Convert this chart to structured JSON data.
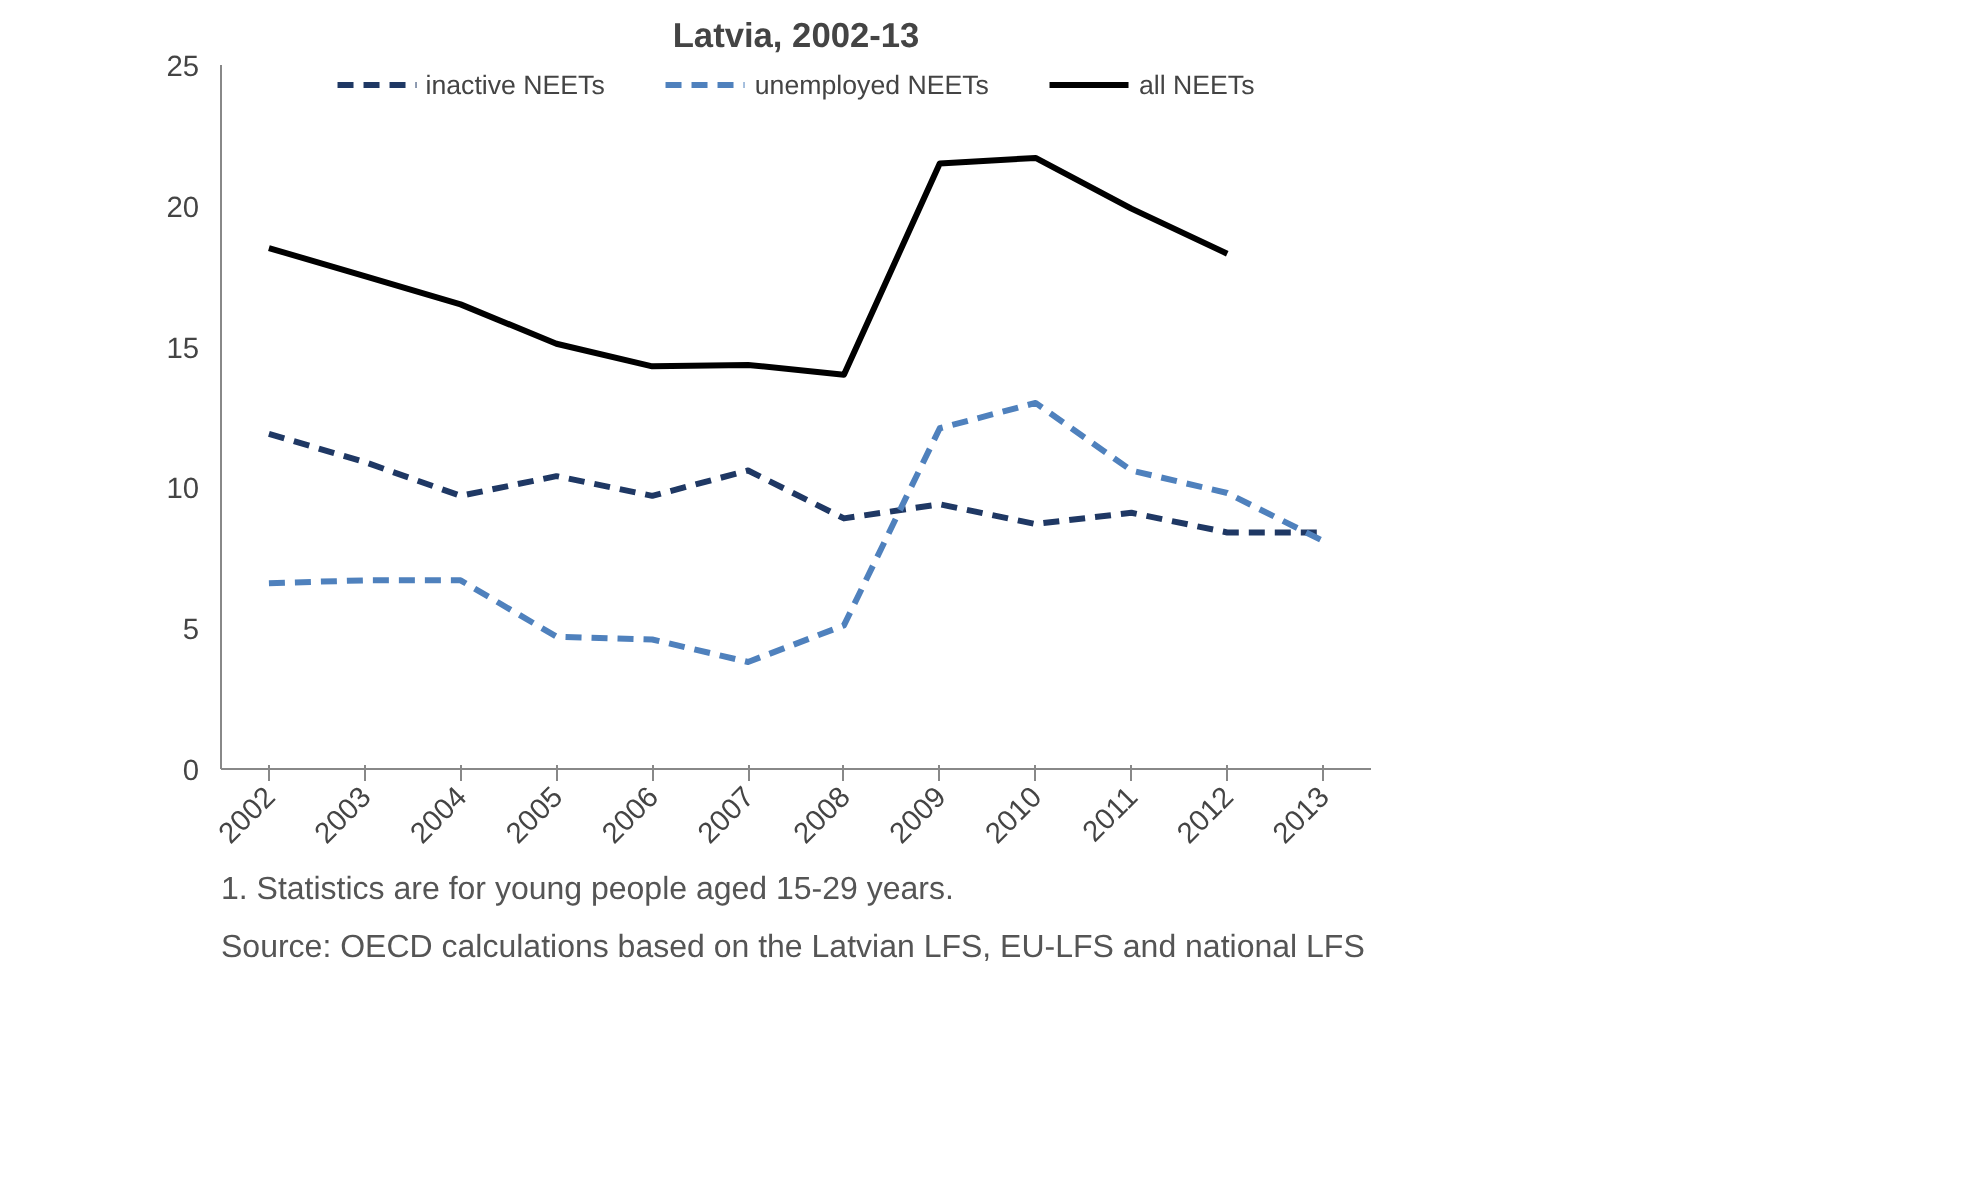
{
  "chart_data": {
    "type": "line",
    "title": "Latvia, 2002-13",
    "categories": [
      "2002",
      "2003",
      "2004",
      "2005",
      "2006",
      "2007",
      "2008",
      "2009",
      "2010",
      "2011",
      "2012",
      "2013"
    ],
    "series": [
      {
        "name": "inactive NEETs",
        "color": "#1f3864",
        "line_style": "dashed",
        "values": [
          11.9,
          10.9,
          9.7,
          10.4,
          9.7,
          10.6,
          8.9,
          9.4,
          8.7,
          9.1,
          8.4,
          8.4
        ]
      },
      {
        "name": "unemployed NEETs",
        "color": "#4f81bd",
        "line_style": "dashed",
        "values": [
          6.6,
          6.7,
          6.7,
          4.7,
          4.6,
          3.8,
          5.1,
          12.1,
          13.0,
          10.6,
          9.8,
          8.1
        ]
      },
      {
        "name": "all NEETs",
        "color": "#000000",
        "line_style": "solid",
        "values": [
          18.5,
          17.5,
          16.5,
          15.1,
          14.3,
          14.35,
          14.0,
          21.5,
          21.7,
          19.9,
          18.3,
          null
        ]
      }
    ],
    "ylim": [
      0,
      25
    ],
    "yticks": [
      0,
      5,
      10,
      15,
      20,
      25
    ],
    "grid": false,
    "legend": "top",
    "marker": "none",
    "annotations": [
      "1.  Statistics are for young people aged 15-29 years.",
      "Source: OECD calculations based on the Latvian LFS, EU-LFS and national LFS"
    ]
  }
}
